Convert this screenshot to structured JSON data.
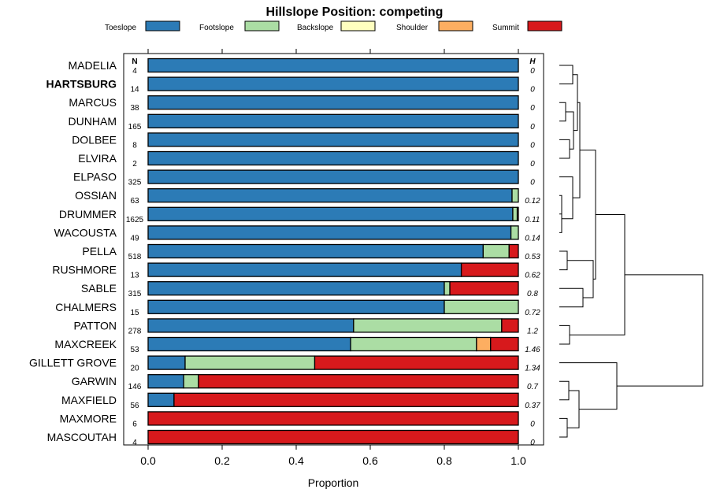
{
  "chart_data": {
    "type": "bar",
    "stacked": true,
    "orientation": "horizontal",
    "title": "Hillslope Position: competing",
    "xlabel": "Proportion",
    "ylabel": "",
    "xlim": [
      0,
      1
    ],
    "xticks": [
      "0.0",
      "0.2",
      "0.4",
      "0.6",
      "0.8",
      "1.0"
    ],
    "n_header": "N",
    "h_header": "H",
    "legend_position": "top",
    "series": [
      {
        "name": "Toeslope",
        "color": "#2c7bb6"
      },
      {
        "name": "Footslope",
        "color": "#abdda4"
      },
      {
        "name": "Backslope",
        "color": "#ffffbf"
      },
      {
        "name": "Shoulder",
        "color": "#fdae61"
      },
      {
        "name": "Summit",
        "color": "#d7191c"
      }
    ],
    "rows": [
      {
        "label": "MADELIA",
        "bold": false,
        "n": "4",
        "h": "0",
        "values": [
          1.0,
          0,
          0,
          0,
          0
        ]
      },
      {
        "label": "HARTSBURG",
        "bold": true,
        "n": "14",
        "h": "0",
        "values": [
          1.0,
          0,
          0,
          0,
          0
        ]
      },
      {
        "label": "MARCUS",
        "bold": false,
        "n": "38",
        "h": "0",
        "values": [
          1.0,
          0,
          0,
          0,
          0
        ]
      },
      {
        "label": "DUNHAM",
        "bold": false,
        "n": "165",
        "h": "0",
        "values": [
          1.0,
          0,
          0,
          0,
          0
        ]
      },
      {
        "label": "DOLBEE",
        "bold": false,
        "n": "8",
        "h": "0",
        "values": [
          1.0,
          0,
          0,
          0,
          0
        ]
      },
      {
        "label": "ELVIRA",
        "bold": false,
        "n": "2",
        "h": "0",
        "values": [
          1.0,
          0,
          0,
          0,
          0
        ]
      },
      {
        "label": "ELPASO",
        "bold": false,
        "n": "325",
        "h": "0",
        "values": [
          1.0,
          0,
          0,
          0,
          0
        ]
      },
      {
        "label": "OSSIAN",
        "bold": false,
        "n": "63",
        "h": "0.12",
        "values": [
          0.983,
          0.017,
          0,
          0,
          0
        ]
      },
      {
        "label": "DRUMMER",
        "bold": false,
        "n": "1625",
        "h": "0.11",
        "values": [
          0.985,
          0.012,
          0,
          0,
          0.003
        ]
      },
      {
        "label": "WACOUSTA",
        "bold": false,
        "n": "49",
        "h": "0.14",
        "values": [
          0.98,
          0.02,
          0,
          0,
          0
        ]
      },
      {
        "label": "PELLA",
        "bold": false,
        "n": "518",
        "h": "0.53",
        "values": [
          0.905,
          0.07,
          0,
          0,
          0.025
        ]
      },
      {
        "label": "RUSHMORE",
        "bold": false,
        "n": "13",
        "h": "0.62",
        "values": [
          0.846,
          0,
          0,
          0,
          0.154
        ]
      },
      {
        "label": "SABLE",
        "bold": false,
        "n": "315",
        "h": "0.8",
        "values": [
          0.8,
          0.015,
          0,
          0,
          0.185
        ]
      },
      {
        "label": "CHALMERS",
        "bold": false,
        "n": "15",
        "h": "0.72",
        "values": [
          0.8,
          0.2,
          0,
          0,
          0
        ]
      },
      {
        "label": "PATTON",
        "bold": false,
        "n": "278",
        "h": "1.2",
        "values": [
          0.555,
          0.4,
          0,
          0,
          0.045
        ]
      },
      {
        "label": "MAXCREEK",
        "bold": false,
        "n": "53",
        "h": "1.46",
        "values": [
          0.547,
          0.34,
          0,
          0.038,
          0.075
        ]
      },
      {
        "label": "GILLETT GROVE",
        "bold": false,
        "n": "20",
        "h": "1.34",
        "values": [
          0.1,
          0.35,
          0,
          0,
          0.55
        ]
      },
      {
        "label": "GARWIN",
        "bold": false,
        "n": "146",
        "h": "0.7",
        "values": [
          0.096,
          0.04,
          0,
          0,
          0.864
        ]
      },
      {
        "label": "MAXFIELD",
        "bold": false,
        "n": "56",
        "h": "0.37",
        "values": [
          0.07,
          0,
          0,
          0,
          0.93
        ]
      },
      {
        "label": "MAXMORE",
        "bold": false,
        "n": "6",
        "h": "0",
        "values": [
          0,
          0,
          0,
          0,
          1.0
        ]
      },
      {
        "label": "MASCOUTAH",
        "bold": false,
        "n": "4",
        "h": "0",
        "values": [
          0,
          0,
          0,
          0,
          1.0
        ]
      }
    ]
  }
}
